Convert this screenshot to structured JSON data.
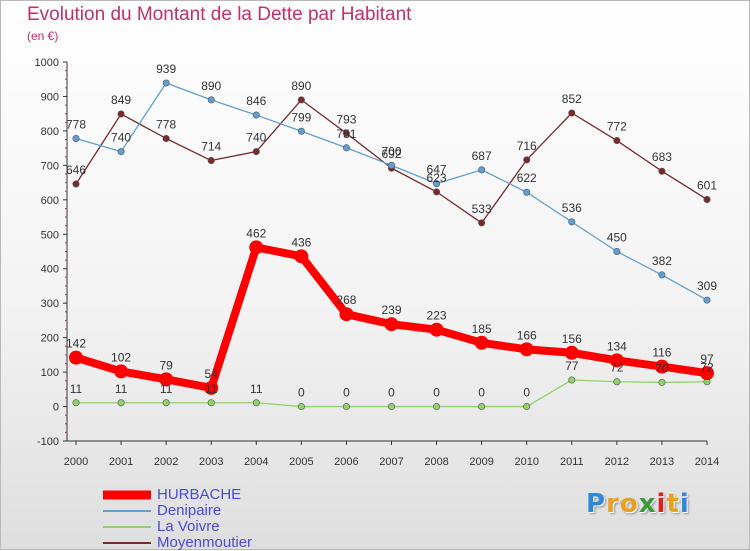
{
  "chart_data": {
    "type": "line",
    "title": "Evolution du Montant de la Dette par Habitant",
    "subtitle": "(en €)",
    "x": [
      "2000",
      "2001",
      "2002",
      "2003",
      "2004",
      "2005",
      "2006",
      "2007",
      "2008",
      "2009",
      "2010",
      "2011",
      "2012",
      "2013",
      "2014"
    ],
    "ylim": [
      -100,
      1000
    ],
    "yticks": [
      "-100",
      "0",
      "100",
      "200",
      "300",
      "400",
      "500",
      "600",
      "700",
      "800",
      "900",
      "1000"
    ],
    "grid": false,
    "legend_position": "bottom-left",
    "series": [
      {
        "name": "Moyenmoutier",
        "color": "#7a2a2a",
        "values": [
          646,
          849,
          778,
          714,
          740,
          890,
          793,
          692,
          623,
          533,
          716,
          852,
          772,
          683,
          601
        ],
        "labels": [
          "646",
          "849",
          "778",
          "714",
          "740",
          "890",
          "793",
          "692",
          "623",
          "533",
          "716",
          "852",
          "772",
          "683",
          "601"
        ]
      },
      {
        "name": "Denipaire",
        "color": "#5f9fd6",
        "values": [
          778,
          740,
          939,
          890,
          846,
          799,
          751,
          700,
          647,
          687,
          622,
          536,
          450,
          382,
          309
        ],
        "labels": [
          "778",
          "740",
          "939",
          "890",
          "846",
          "799",
          "751",
          "700",
          "647",
          "687",
          "622",
          "536",
          "450",
          "382",
          "309"
        ]
      },
      {
        "name": "La Voivre",
        "color": "#8fd16a",
        "values": [
          11,
          11,
          11,
          11,
          11,
          0,
          0,
          0,
          0,
          0,
          0,
          77,
          72,
          70,
          72
        ],
        "labels": [
          "11",
          "11",
          "11",
          "11",
          "11",
          "0",
          "0",
          "0",
          "0",
          "0",
          "0",
          "77",
          "72",
          "70",
          "72"
        ]
      },
      {
        "name": "HURBACHE",
        "color": "#ff0000",
        "values": [
          142,
          102,
          79,
          54,
          462,
          436,
          268,
          239,
          223,
          185,
          166,
          156,
          134,
          116,
          97
        ],
        "labels": [
          "142",
          "102",
          "79",
          "54",
          "462",
          "436",
          "268",
          "239",
          "223",
          "185",
          "166",
          "156",
          "134",
          "116",
          "97"
        ]
      }
    ],
    "legend": [
      "HURBACHE",
      "Denipaire",
      "La Voivre",
      "Moyenmoutier"
    ]
  },
  "logo": {
    "letters": [
      "P",
      "r",
      "o",
      "x",
      "i",
      "t",
      "i"
    ],
    "colors": [
      "#2f89d8",
      "#e8a020",
      "#e8a020",
      "#3a9a3a",
      "#e02020",
      "#e8a020",
      "#2f89d8"
    ]
  }
}
